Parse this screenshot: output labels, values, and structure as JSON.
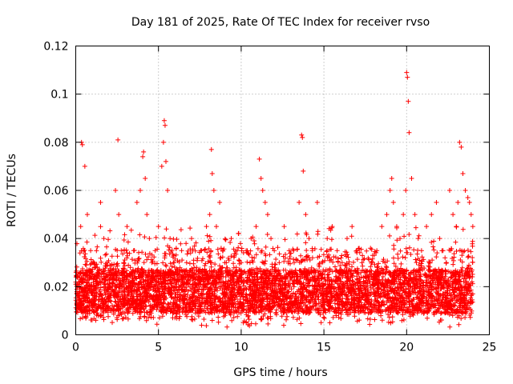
{
  "chart_data": {
    "type": "scatter",
    "title": "Day 181 of 2025, Rate Of TEC Index for receiver rvso",
    "xlabel": "GPS time / hours",
    "ylabel": "ROTI / TECUs",
    "xlim": [
      0,
      25
    ],
    "ylim": [
      0,
      0.12
    ],
    "xticks": [
      0,
      5,
      10,
      15,
      20,
      25
    ],
    "yticks": [
      0,
      0.02,
      0.04,
      0.06,
      0.08,
      0.1,
      0.12
    ],
    "xtick_labels": [
      "0",
      "5",
      "10",
      "15",
      "20",
      "25"
    ],
    "ytick_labels": [
      "0",
      "0.02",
      "0.04",
      "0.06",
      "0.08",
      "0.1",
      "0.12"
    ],
    "grid": true,
    "marker": "+",
    "color": "#ff0000",
    "series": [
      {
        "name": "ROTI",
        "x": [
          0.1,
          0.3,
          0.35,
          0.4,
          0.55,
          0.7,
          0.9,
          1.1,
          1.3,
          1.5,
          1.7,
          1.9,
          2.2,
          2.4,
          2.55,
          2.6,
          2.75,
          2.9,
          3.1,
          3.3,
          3.5,
          3.7,
          3.9,
          4.05,
          4.1,
          4.2,
          4.3,
          4.45,
          4.6,
          4.8,
          5.0,
          5.2,
          5.3,
          5.35,
          5.4,
          5.45,
          5.55,
          5.7,
          5.9,
          6.1,
          6.4,
          6.7,
          7.0,
          7.3,
          7.6,
          7.9,
          8.1,
          8.2,
          8.25,
          8.35,
          8.5,
          8.7,
          8.9,
          9.1,
          9.4,
          9.7,
          10.0,
          10.3,
          10.6,
          10.9,
          11.1,
          11.2,
          11.3,
          11.45,
          11.6,
          11.8,
          12.0,
          12.3,
          12.6,
          12.9,
          13.2,
          13.5,
          13.65,
          13.7,
          13.75,
          13.9,
          14.1,
          14.3,
          14.6,
          14.9,
          15.2,
          15.5,
          15.8,
          16.1,
          16.4,
          16.7,
          17.0,
          17.3,
          17.6,
          17.9,
          18.2,
          18.5,
          18.8,
          19.0,
          19.1,
          19.2,
          19.4,
          19.6,
          19.8,
          19.95,
          20.0,
          20.05,
          20.1,
          20.15,
          20.3,
          20.5,
          20.7,
          20.9,
          21.2,
          21.5,
          21.8,
          22.0,
          22.2,
          22.4,
          22.6,
          22.8,
          23.0,
          23.1,
          23.2,
          23.3,
          23.4,
          23.55,
          23.7,
          23.8,
          23.9,
          24.0
        ],
        "y": [
          0.02,
          0.045,
          0.08,
          0.079,
          0.07,
          0.05,
          0.035,
          0.03,
          0.028,
          0.055,
          0.04,
          0.03,
          0.025,
          0.06,
          0.081,
          0.05,
          0.035,
          0.03,
          0.045,
          0.028,
          0.035,
          0.055,
          0.06,
          0.074,
          0.076,
          0.065,
          0.05,
          0.04,
          0.03,
          0.035,
          0.045,
          0.07,
          0.08,
          0.089,
          0.087,
          0.072,
          0.06,
          0.04,
          0.03,
          0.025,
          0.035,
          0.03,
          0.04,
          0.028,
          0.035,
          0.045,
          0.05,
          0.077,
          0.067,
          0.06,
          0.045,
          0.055,
          0.035,
          0.03,
          0.04,
          0.028,
          0.03,
          0.035,
          0.04,
          0.045,
          0.073,
          0.065,
          0.06,
          0.055,
          0.05,
          0.04,
          0.035,
          0.03,
          0.045,
          0.035,
          0.03,
          0.055,
          0.083,
          0.082,
          0.068,
          0.05,
          0.04,
          0.035,
          0.055,
          0.03,
          0.04,
          0.045,
          0.035,
          0.03,
          0.04,
          0.045,
          0.035,
          0.03,
          0.025,
          0.03,
          0.035,
          0.045,
          0.05,
          0.06,
          0.065,
          0.055,
          0.045,
          0.04,
          0.05,
          0.06,
          0.109,
          0.107,
          0.097,
          0.084,
          0.065,
          0.05,
          0.04,
          0.035,
          0.045,
          0.05,
          0.055,
          0.04,
          0.035,
          0.03,
          0.06,
          0.05,
          0.045,
          0.055,
          0.08,
          0.078,
          0.067,
          0.06,
          0.057,
          0.055,
          0.05,
          0.045
        ]
      }
    ]
  }
}
